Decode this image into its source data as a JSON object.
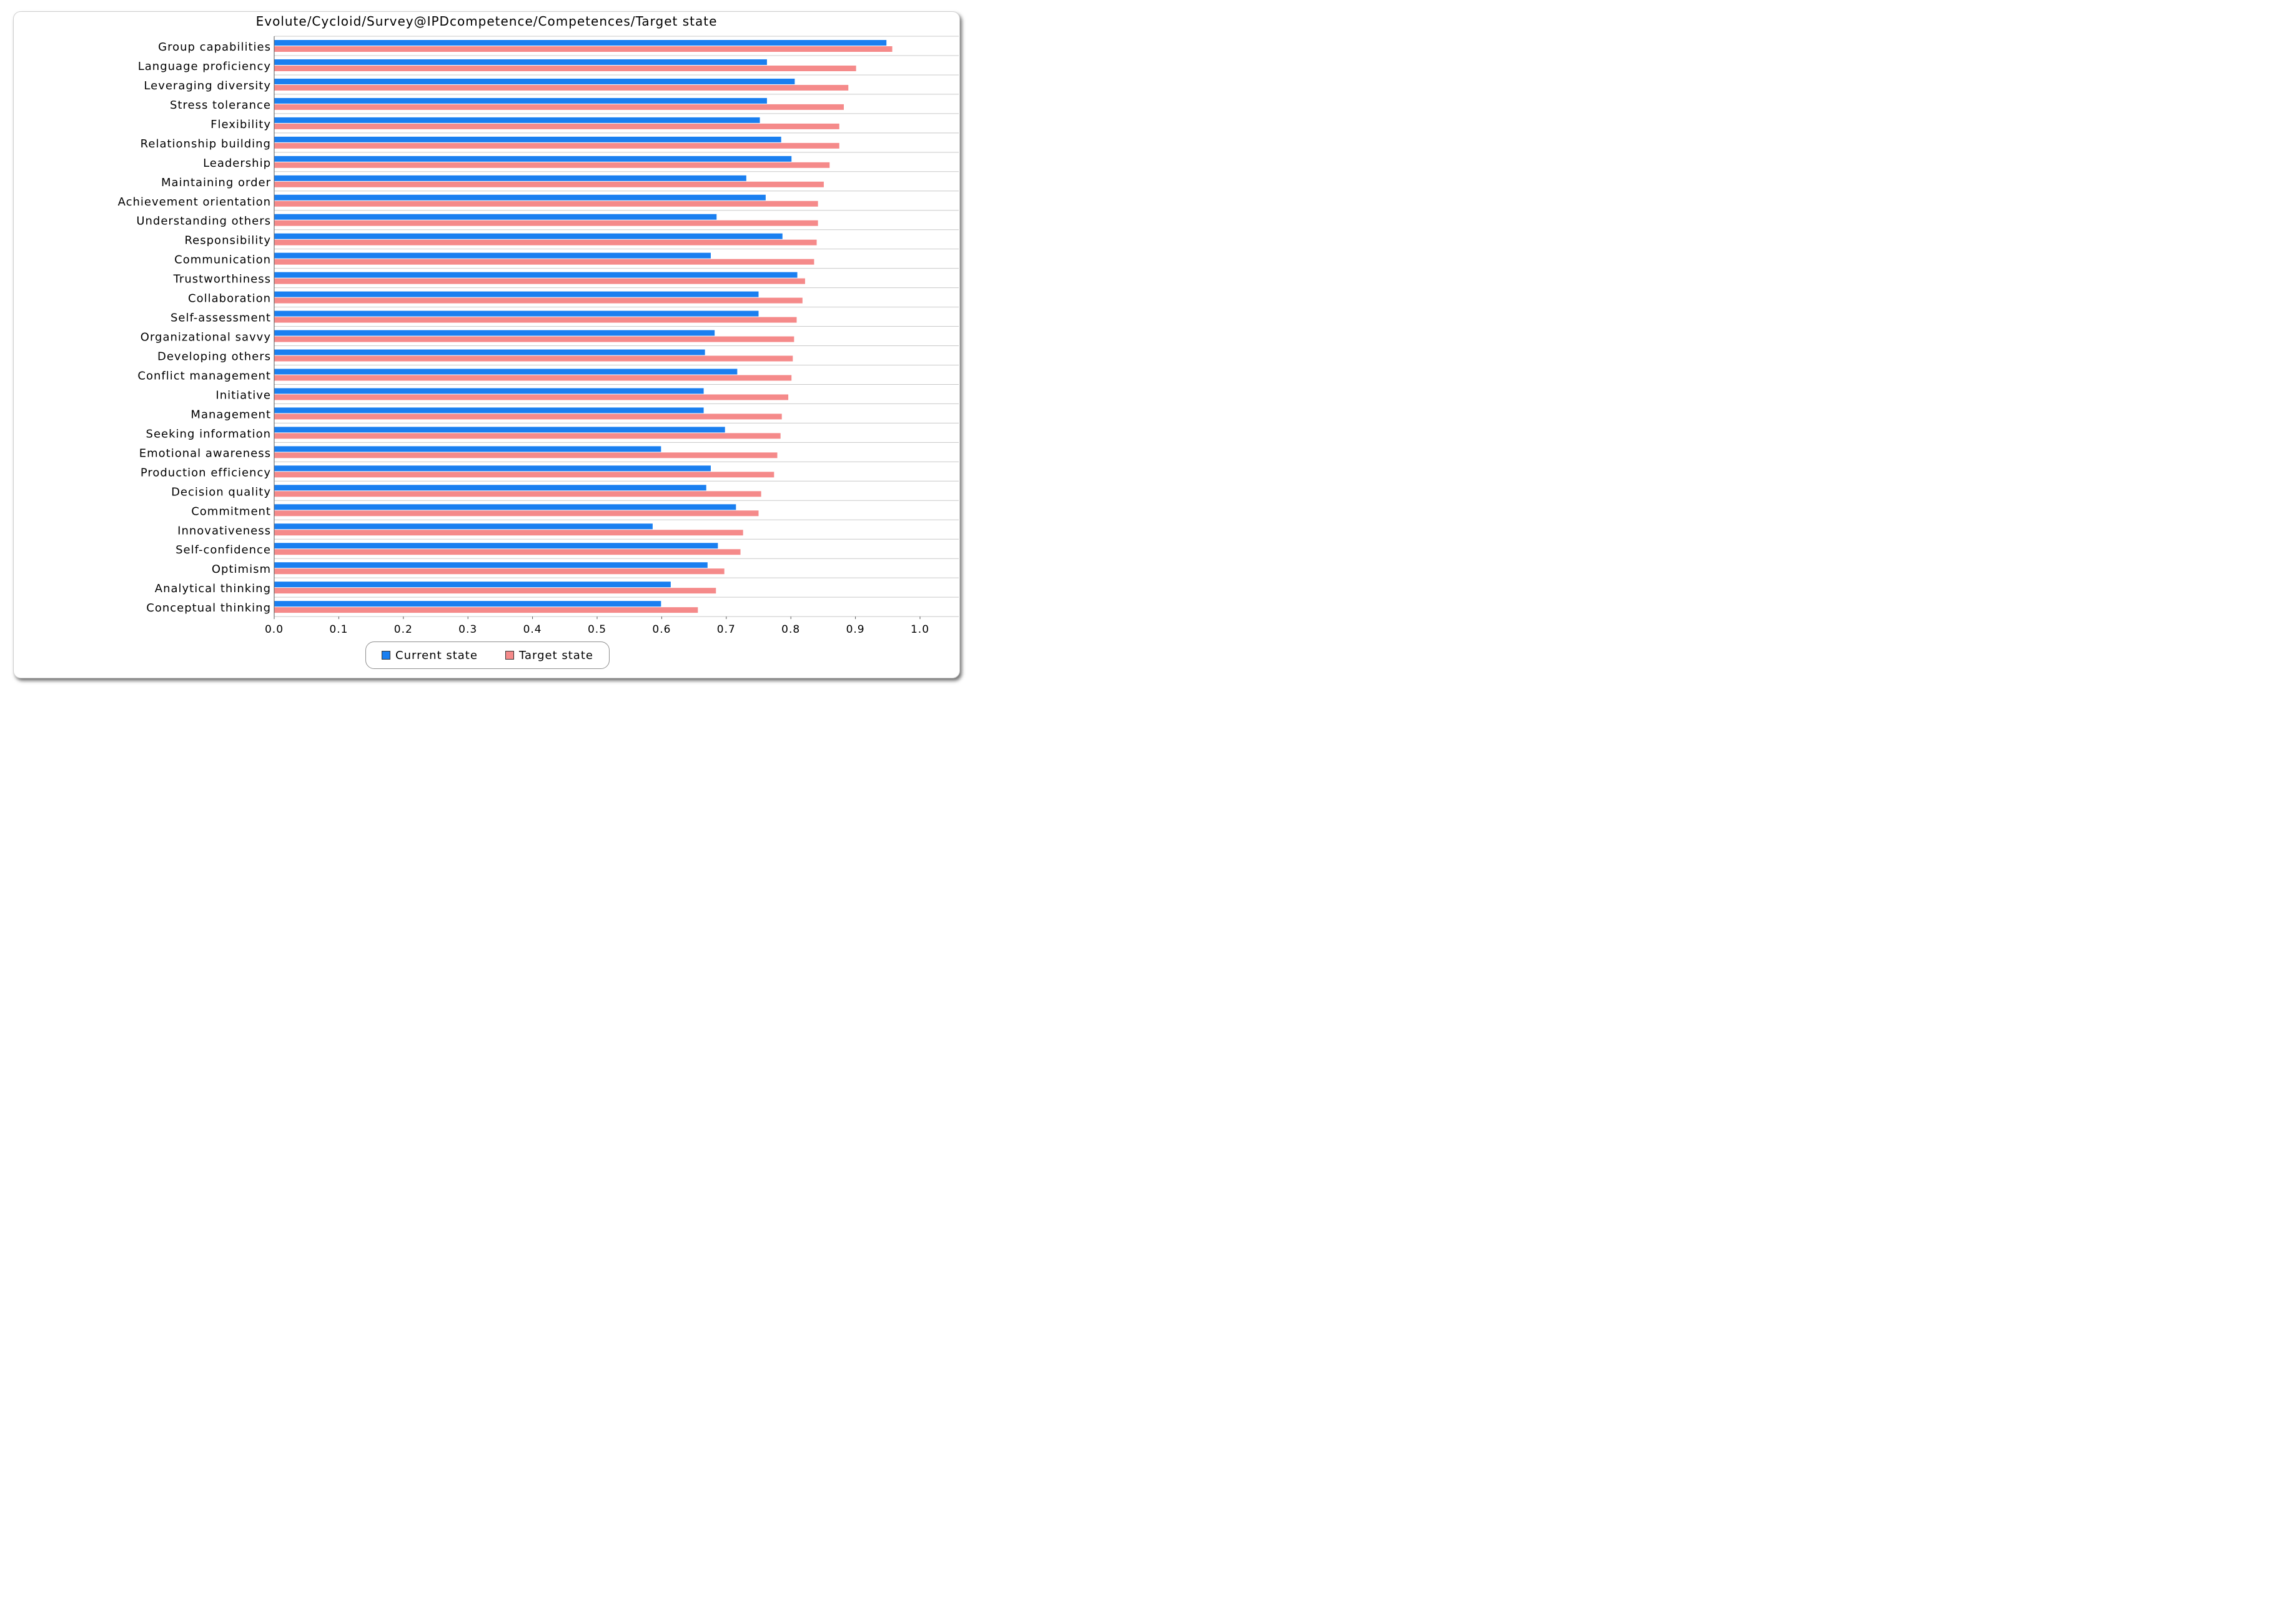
{
  "chart_data": {
    "type": "bar",
    "orientation": "horizontal",
    "title": "Evolute/Cycloid/Survey@IPDcompetence/Competences/Target state",
    "xlabel": "",
    "ylabel": "",
    "xlim": [
      0.0,
      1.0
    ],
    "xticks": [
      "0.0",
      "0.1",
      "0.2",
      "0.3",
      "0.4",
      "0.5",
      "0.6",
      "0.7",
      "0.8",
      "0.9",
      "1.0"
    ],
    "grid": "horizontal",
    "legend_position": "bottom-center",
    "categories": [
      "Group capabilities",
      "Language proficiency",
      "Leveraging diversity",
      "Stress tolerance",
      "Flexibility",
      "Relationship building",
      "Leadership",
      "Maintaining order",
      "Achievement orientation",
      "Understanding others",
      "Responsibility",
      "Communication",
      "Trustworthiness",
      "Collaboration",
      "Self-assessment",
      "Organizational savvy",
      "Developing others",
      "Conflict management",
      "Initiative",
      "Management",
      "Seeking information",
      "Emotional awareness",
      "Production efficiency",
      "Decision quality",
      "Commitment",
      "Innovativeness",
      "Self-confidence",
      "Optimism",
      "Analytical thinking",
      "Conceptual thinking"
    ],
    "series": [
      {
        "name": "Current state",
        "color": "#1a7ff0",
        "values": [
          0.948,
          0.763,
          0.806,
          0.763,
          0.752,
          0.785,
          0.801,
          0.731,
          0.761,
          0.685,
          0.787,
          0.676,
          0.81,
          0.75,
          0.75,
          0.682,
          0.667,
          0.717,
          0.665,
          0.665,
          0.698,
          0.599,
          0.676,
          0.669,
          0.715,
          0.586,
          0.687,
          0.671,
          0.614,
          0.599
        ]
      },
      {
        "name": "Target state",
        "color": "#f58a8a",
        "values": [
          0.957,
          0.901,
          0.889,
          0.882,
          0.875,
          0.875,
          0.86,
          0.851,
          0.842,
          0.842,
          0.84,
          0.836,
          0.822,
          0.818,
          0.809,
          0.805,
          0.803,
          0.801,
          0.796,
          0.786,
          0.784,
          0.779,
          0.774,
          0.754,
          0.75,
          0.726,
          0.722,
          0.697,
          0.684,
          0.656
        ]
      }
    ]
  }
}
